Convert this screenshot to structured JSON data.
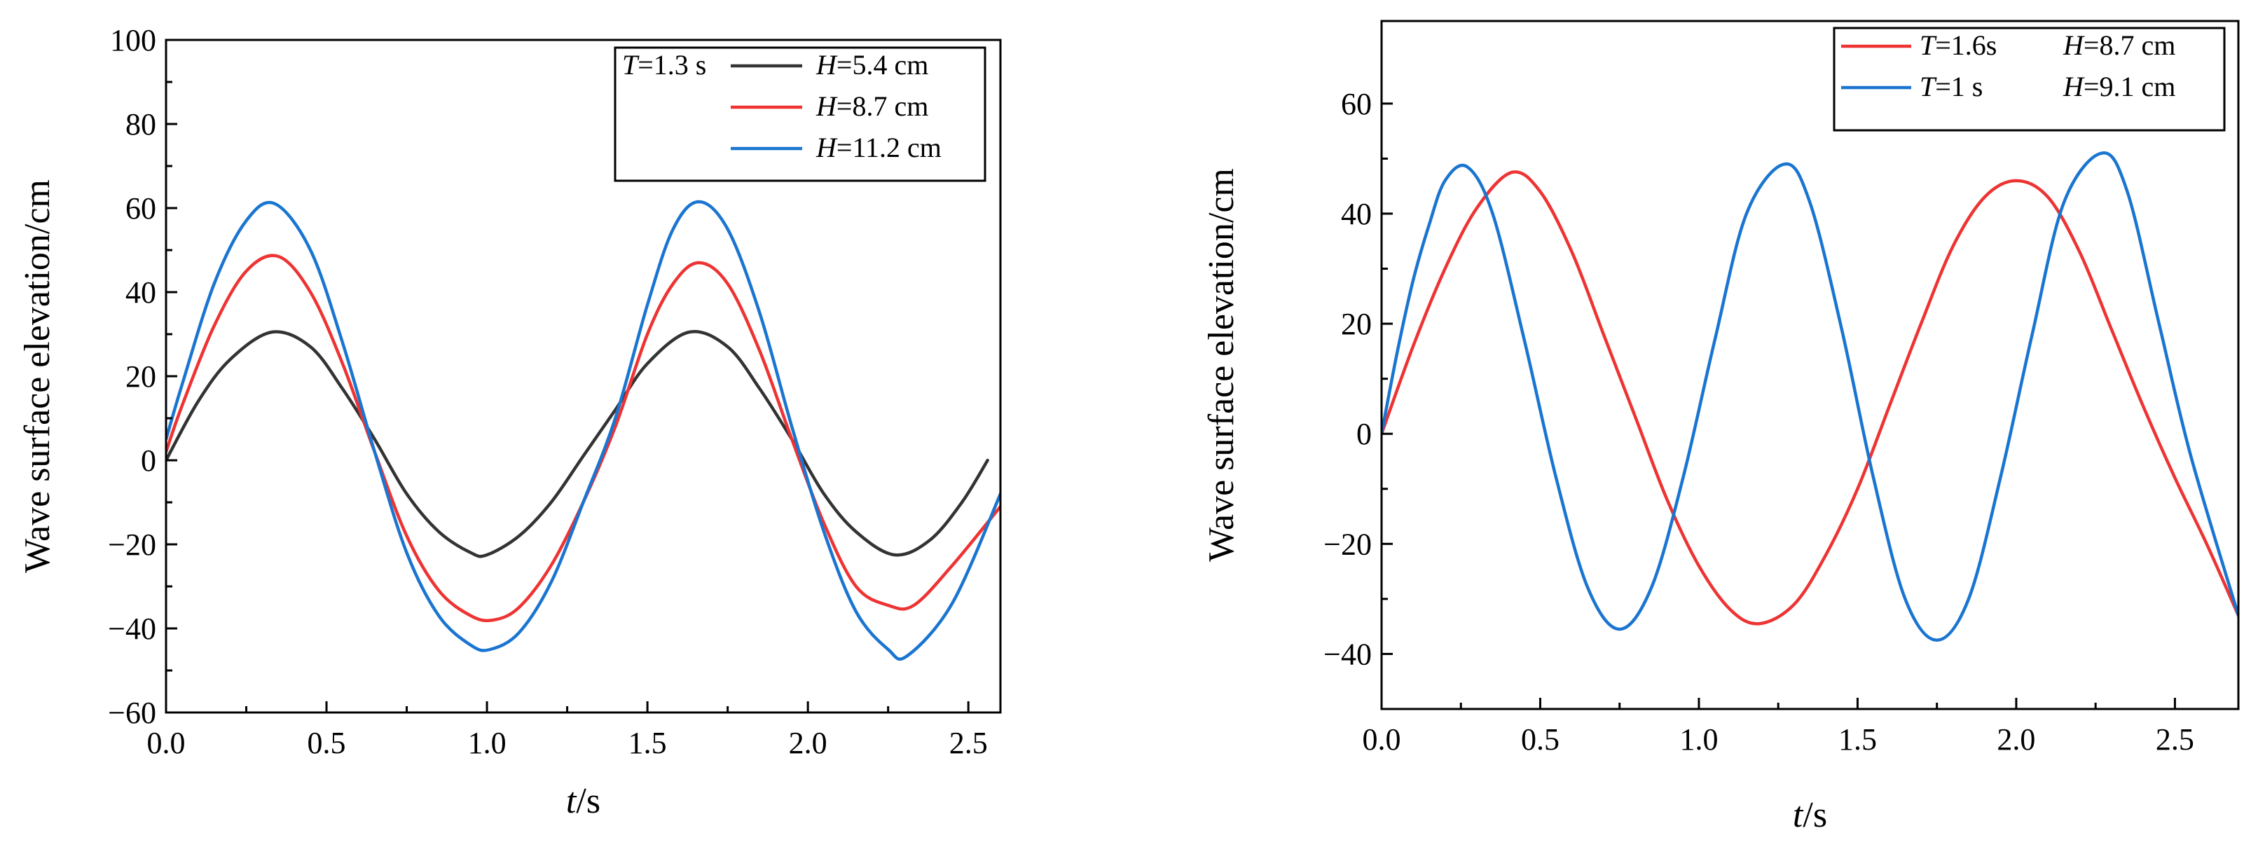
{
  "chart_data": [
    {
      "type": "line",
      "xlabel": {
        "var": "t",
        "unit": "/s"
      },
      "ylabel": "Wave surface elevation/cm",
      "xlim": [
        0,
        2.6
      ],
      "ylim": [
        -60,
        100
      ],
      "xticks": [
        0,
        0.5,
        1,
        1.5,
        2,
        2.5
      ],
      "xtick_labels": [
        "0.0",
        "0.5",
        "1.0",
        "1.5",
        "2.0",
        "2.5"
      ],
      "yticks": [
        -60,
        -40,
        -20,
        0,
        20,
        40,
        60,
        80,
        100
      ],
      "ytick_labels": [
        "−60",
        "−40",
        "−20",
        "0",
        "20",
        "40",
        "60",
        "80",
        "100"
      ],
      "legend": {
        "position": "top-right",
        "entries": [
          {
            "prefix_var": "T",
            "prefix_rest": "=1.3 s",
            "var": "H",
            "rest": "=5.4 cm"
          },
          {
            "prefix_var": "",
            "prefix_rest": "",
            "var": "H",
            "rest": "=8.7 cm"
          },
          {
            "prefix_var": "",
            "prefix_rest": "",
            "var": "H",
            "rest": "=11.2 cm"
          }
        ]
      },
      "series": [
        {
          "name": "T=1.3 s H=5.4 cm",
          "color": "#333333",
          "x": [
            0,
            0.1,
            0.2,
            0.33,
            0.45,
            0.55,
            0.65,
            0.75,
            0.85,
            0.95,
            1.0,
            1.1,
            1.2,
            1.3,
            1.4,
            1.5,
            1.63,
            1.75,
            1.85,
            1.95,
            2.05,
            2.15,
            2.27,
            2.38,
            2.48,
            2.56
          ],
          "y": [
            0,
            14,
            24,
            30.5,
            27,
            17,
            5,
            -8,
            -17,
            -22,
            -22.5,
            -18,
            -10,
            1,
            12,
            23,
            30.5,
            27,
            17,
            5,
            -8,
            -17,
            -22.5,
            -19,
            -10,
            0
          ]
        },
        {
          "name": "T=1.3 s H=8.7 cm",
          "color": "#ee3333",
          "x": [
            0,
            0.05,
            0.15,
            0.25,
            0.35,
            0.45,
            0.55,
            0.65,
            0.75,
            0.85,
            0.95,
            1.02,
            1.1,
            1.2,
            1.3,
            1.4,
            1.5,
            1.58,
            1.66,
            1.75,
            1.85,
            1.95,
            2.05,
            2.15,
            2.25,
            2.33,
            2.45,
            2.6
          ],
          "y": [
            2,
            13,
            32,
            45,
            48.5,
            40,
            23,
            2,
            -18,
            -31,
            -37,
            -38,
            -35,
            -25,
            -10,
            8,
            30,
            42,
            47,
            42,
            26,
            5,
            -15,
            -30,
            -34.5,
            -34.5,
            -25,
            -11
          ]
        },
        {
          "name": "T=1.3 s H=11.2 cm",
          "color": "#1a75d1",
          "x": [
            0,
            0.05,
            0.15,
            0.25,
            0.34,
            0.45,
            0.55,
            0.65,
            0.75,
            0.85,
            0.95,
            1.01,
            1.1,
            1.2,
            1.3,
            1.4,
            1.5,
            1.58,
            1.66,
            1.75,
            1.85,
            1.95,
            2.05,
            2.15,
            2.25,
            2.31,
            2.45,
            2.6
          ],
          "y": [
            5,
            18,
            42,
            57,
            61,
            50,
            28,
            2,
            -22,
            -37,
            -44,
            -45,
            -41,
            -29,
            -10,
            10,
            37,
            55,
            61.5,
            55,
            35,
            8,
            -17,
            -36,
            -45,
            -46.5,
            -34,
            -8
          ]
        }
      ]
    },
    {
      "type": "line",
      "xlabel": {
        "var": "t",
        "unit": "/s"
      },
      "ylabel": "Wave surface elevation/cm",
      "xlim": [
        0,
        2.7
      ],
      "ylim": [
        -50,
        75
      ],
      "xticks": [
        0,
        0.5,
        1,
        1.5,
        2,
        2.5
      ],
      "xtick_labels": [
        "0.0",
        "0.5",
        "1.0",
        "1.5",
        "2.0",
        "2.5"
      ],
      "yticks": [
        -40,
        -20,
        0,
        20,
        40,
        60
      ],
      "ytick_labels": [
        "−40",
        "−20",
        "0",
        "20",
        "40",
        "60"
      ],
      "legend": {
        "position": "top-right",
        "entries": [
          {
            "prefix_var": "T",
            "prefix_rest": "=1.6s",
            "var": "H",
            "rest": "=8.7 cm"
          },
          {
            "prefix_var": "T",
            "prefix_rest": "=1 s",
            "var": "H",
            "rest": "=9.1 cm"
          }
        ]
      },
      "series": [
        {
          "name": "T=1.6s H=8.7 cm",
          "color": "#ee3333",
          "x": [
            0,
            0.1,
            0.2,
            0.3,
            0.41,
            0.5,
            0.6,
            0.7,
            0.8,
            0.9,
            1.0,
            1.1,
            1.19,
            1.3,
            1.4,
            1.5,
            1.6,
            1.7,
            1.8,
            1.9,
            2.0,
            2.1,
            2.2,
            2.3,
            2.4,
            2.5,
            2.6,
            2.7
          ],
          "y": [
            0,
            16,
            30,
            41,
            47.5,
            44,
            33,
            18,
            3,
            -12,
            -24,
            -32,
            -34.5,
            -31,
            -22,
            -10,
            5,
            20,
            34,
            43,
            46,
            43,
            33,
            19,
            5,
            -8,
            -20,
            -33
          ]
        },
        {
          "name": "T=1 s H=9.1 cm",
          "color": "#1a75d1",
          "x": [
            0,
            0.05,
            0.1,
            0.15,
            0.2,
            0.27,
            0.35,
            0.45,
            0.55,
            0.65,
            0.75,
            0.85,
            0.95,
            1.05,
            1.15,
            1.27,
            1.35,
            1.45,
            1.55,
            1.65,
            1.75,
            1.85,
            1.95,
            2.05,
            2.15,
            2.27,
            2.35,
            2.45,
            2.55,
            2.7
          ],
          "y": [
            0,
            15,
            28,
            38,
            46,
            48.5,
            40,
            17,
            -8,
            -28,
            -35.5,
            -28,
            -8,
            17,
            40,
            49,
            42,
            19,
            -8,
            -30,
            -37.5,
            -30,
            -8,
            18,
            42,
            51,
            44,
            20,
            -4,
            -33
          ]
        }
      ]
    }
  ]
}
